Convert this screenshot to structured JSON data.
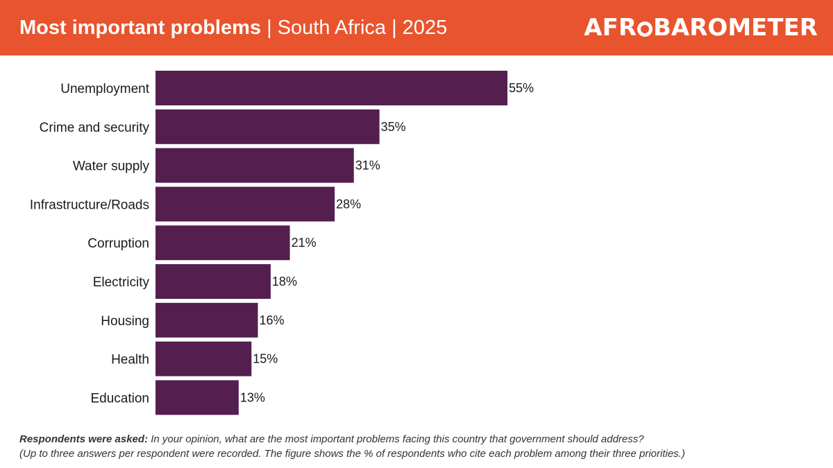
{
  "header": {
    "title_main": "Most important problems",
    "title_sub": " | South Africa | 2025",
    "logo_left": "AFR",
    "logo_right": "BAROMETER",
    "background_color": "#e8542e"
  },
  "chart_data": {
    "type": "bar",
    "orientation": "horizontal",
    "categories": [
      "Unemployment",
      "Crime and security",
      "Water supply",
      "Infrastructure/Roads",
      "Corruption",
      "Electricity",
      "Housing",
      "Health",
      "Education"
    ],
    "values": [
      55,
      35,
      31,
      28,
      21,
      18,
      16,
      15,
      13
    ],
    "value_labels": [
      "55%",
      "35%",
      "31%",
      "28%",
      "21%",
      "18%",
      "16%",
      "15%",
      "13%"
    ],
    "unit": "%",
    "bar_color": "#541f4f",
    "xlim": [
      0,
      55
    ],
    "grid": false,
    "legend": "none"
  },
  "footnote": {
    "label": "Respondents were asked:",
    "question": " In your opinion, what are the most important problems facing this country that government should address?",
    "note": "(Up to three answers per respondent were recorded. The figure shows the % of respondents who cite each problem among their three priorities.)"
  }
}
